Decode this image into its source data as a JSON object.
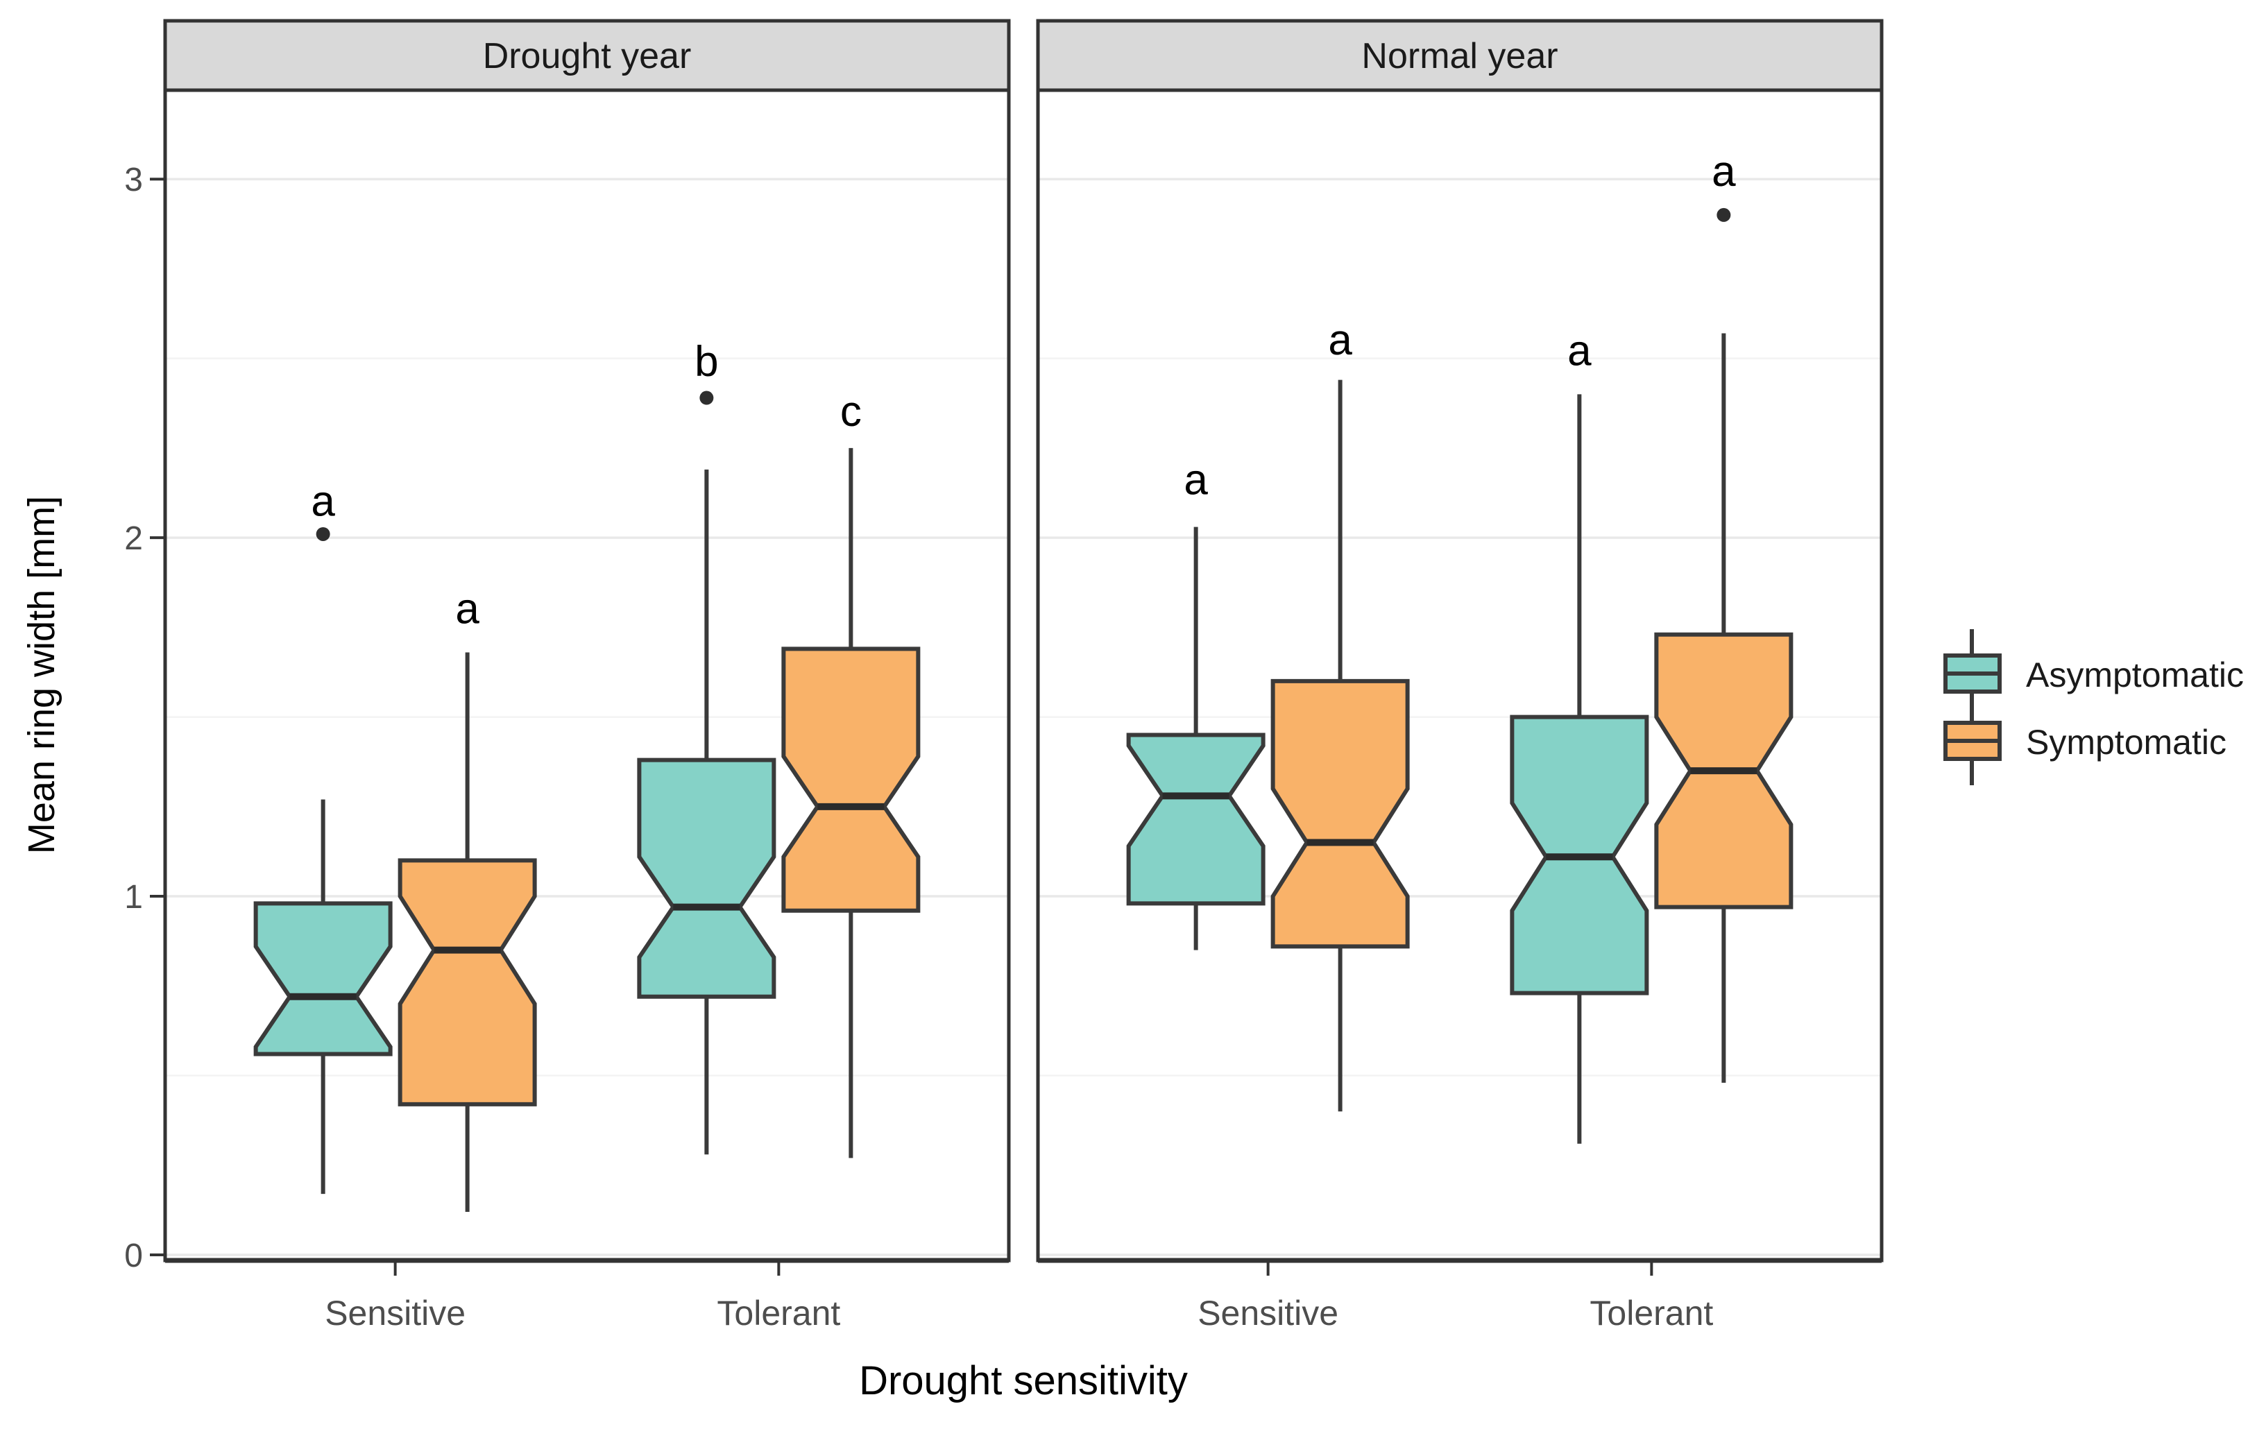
{
  "chart_data": {
    "type": "boxplot",
    "notched": true,
    "ylabel": "Mean ring width [mm]",
    "xlabel": "Drought sensitivity",
    "categories": [
      "Sensitive",
      "Tolerant"
    ],
    "y_ticks": [
      0,
      1,
      2,
      3
    ],
    "y_tick_labels": [
      "0",
      "1",
      "2",
      "3"
    ],
    "y_minor_gridlines": [
      0.5,
      1.5,
      2.5
    ],
    "ylim": [
      0,
      3.25
    ],
    "legend_position": "right-center",
    "series": [
      {
        "name": "Asymptomatic",
        "color": "#85D2C7"
      },
      {
        "name": "Symptomatic",
        "color": "#F9B269"
      }
    ],
    "panels": [
      {
        "label": "Drought year",
        "boxes": [
          {
            "category": "Sensitive",
            "series": "Asymptomatic",
            "whisker_low": 0.17,
            "q1": 0.56,
            "median": 0.72,
            "q3": 0.98,
            "whisker_high": 1.27,
            "notch_low": 0.58,
            "notch_high": 0.86,
            "outliers": [
              2.01
            ],
            "sig_letter": "a",
            "sig_letter_y": 2.1
          },
          {
            "category": "Sensitive",
            "series": "Symptomatic",
            "whisker_low": 0.12,
            "q1": 0.42,
            "median": 0.85,
            "q3": 1.1,
            "whisker_high": 1.68,
            "notch_low": 0.7,
            "notch_high": 1.0,
            "outliers": [],
            "sig_letter": "a",
            "sig_letter_y": 1.8
          },
          {
            "category": "Tolerant",
            "series": "Asymptomatic",
            "whisker_low": 0.28,
            "q1": 0.72,
            "median": 0.97,
            "q3": 1.38,
            "whisker_high": 2.19,
            "notch_low": 0.83,
            "notch_high": 1.11,
            "outliers": [
              2.39
            ],
            "sig_letter": "b",
            "sig_letter_y": 2.49
          },
          {
            "category": "Tolerant",
            "series": "Symptomatic",
            "whisker_low": 0.27,
            "q1": 0.96,
            "median": 1.25,
            "q3": 1.69,
            "whisker_high": 2.25,
            "notch_low": 1.11,
            "notch_high": 1.39,
            "outliers": [],
            "sig_letter": "c",
            "sig_letter_y": 2.35
          }
        ]
      },
      {
        "label": "Normal year",
        "boxes": [
          {
            "category": "Sensitive",
            "series": "Asymptomatic",
            "whisker_low": 0.85,
            "q1": 0.98,
            "median": 1.28,
            "q3": 1.45,
            "whisker_high": 2.03,
            "notch_low": 1.14,
            "notch_high": 1.42,
            "outliers": [],
            "sig_letter": "a",
            "sig_letter_y": 2.16
          },
          {
            "category": "Sensitive",
            "series": "Symptomatic",
            "whisker_low": 0.4,
            "q1": 0.86,
            "median": 1.15,
            "q3": 1.6,
            "whisker_high": 2.44,
            "notch_low": 1.0,
            "notch_high": 1.3,
            "outliers": [],
            "sig_letter": "a",
            "sig_letter_y": 2.55
          },
          {
            "category": "Tolerant",
            "series": "Asymptomatic",
            "whisker_low": 0.31,
            "q1": 0.73,
            "median": 1.11,
            "q3": 1.5,
            "whisker_high": 2.4,
            "notch_low": 0.96,
            "notch_high": 1.26,
            "outliers": [],
            "sig_letter": "a",
            "sig_letter_y": 2.52
          },
          {
            "category": "Tolerant",
            "series": "Symptomatic",
            "whisker_low": 0.48,
            "q1": 0.97,
            "median": 1.35,
            "q3": 1.73,
            "whisker_high": 2.57,
            "notch_low": 1.2,
            "notch_high": 1.5,
            "outliers": [
              2.9
            ],
            "sig_letter": "a",
            "sig_letter_y": 3.02
          }
        ]
      }
    ],
    "colors": {
      "panel_header_fill": "#D9D9D9",
      "panel_border": "#333333",
      "grid_major": "#E9E9E9",
      "grid_minor": "#F3F3F3",
      "box_outline": "#3A3A3A",
      "median_line": "#2B2B2B",
      "outlier_point": "#2E2E2E",
      "tick_text": "#4D4D4D",
      "label_text": "#000000"
    }
  }
}
